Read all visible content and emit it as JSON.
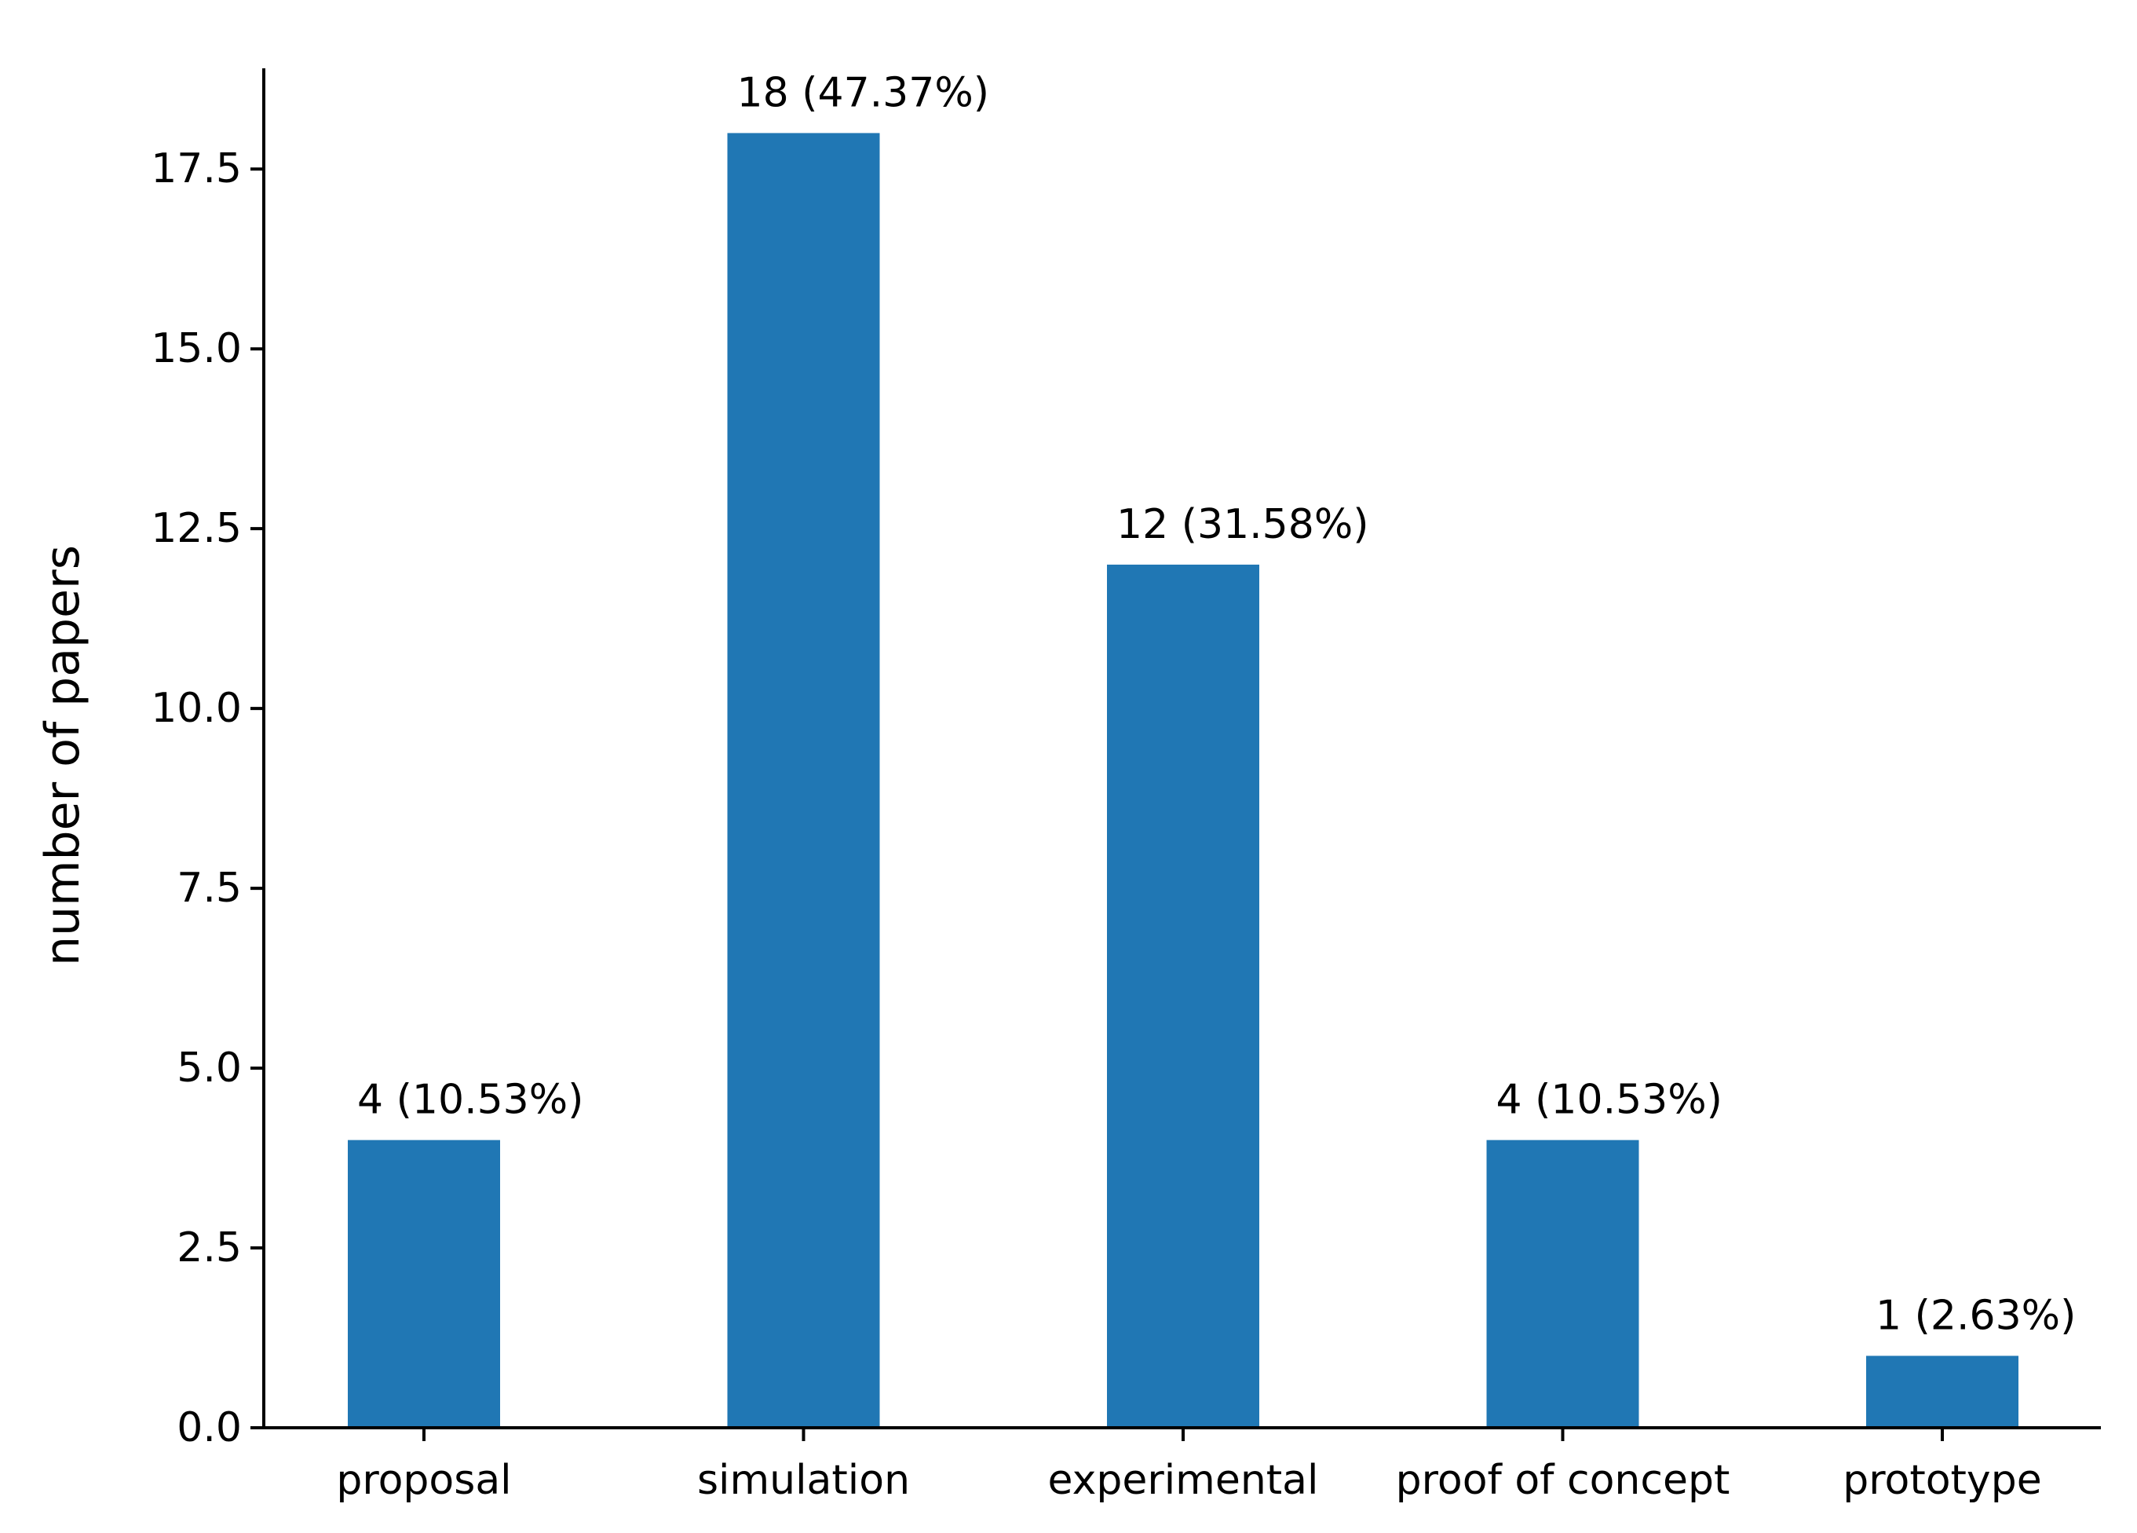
{
  "chart_data": {
    "type": "bar",
    "title": "",
    "xlabel": "",
    "ylabel": "number of papers",
    "ylim": [
      0,
      18.9
    ],
    "yticks": [
      0.0,
      2.5,
      5.0,
      7.5,
      10.0,
      12.5,
      15.0,
      17.5
    ],
    "ytick_labels": [
      "0.0",
      "2.5",
      "5.0",
      "7.5",
      "10.0",
      "12.5",
      "15.0",
      "17.5"
    ],
    "grid": false,
    "categories": [
      "proposal",
      "simulation",
      "experimental",
      "proof of concept",
      "prototype"
    ],
    "values": [
      4,
      18,
      12,
      4,
      1
    ],
    "data_labels": [
      "4 (10.53%)",
      "18 (47.37%)",
      "12 (31.58%)",
      "4 (10.53%)",
      "1 (2.63%)"
    ],
    "bar_color": "#2077b4"
  }
}
